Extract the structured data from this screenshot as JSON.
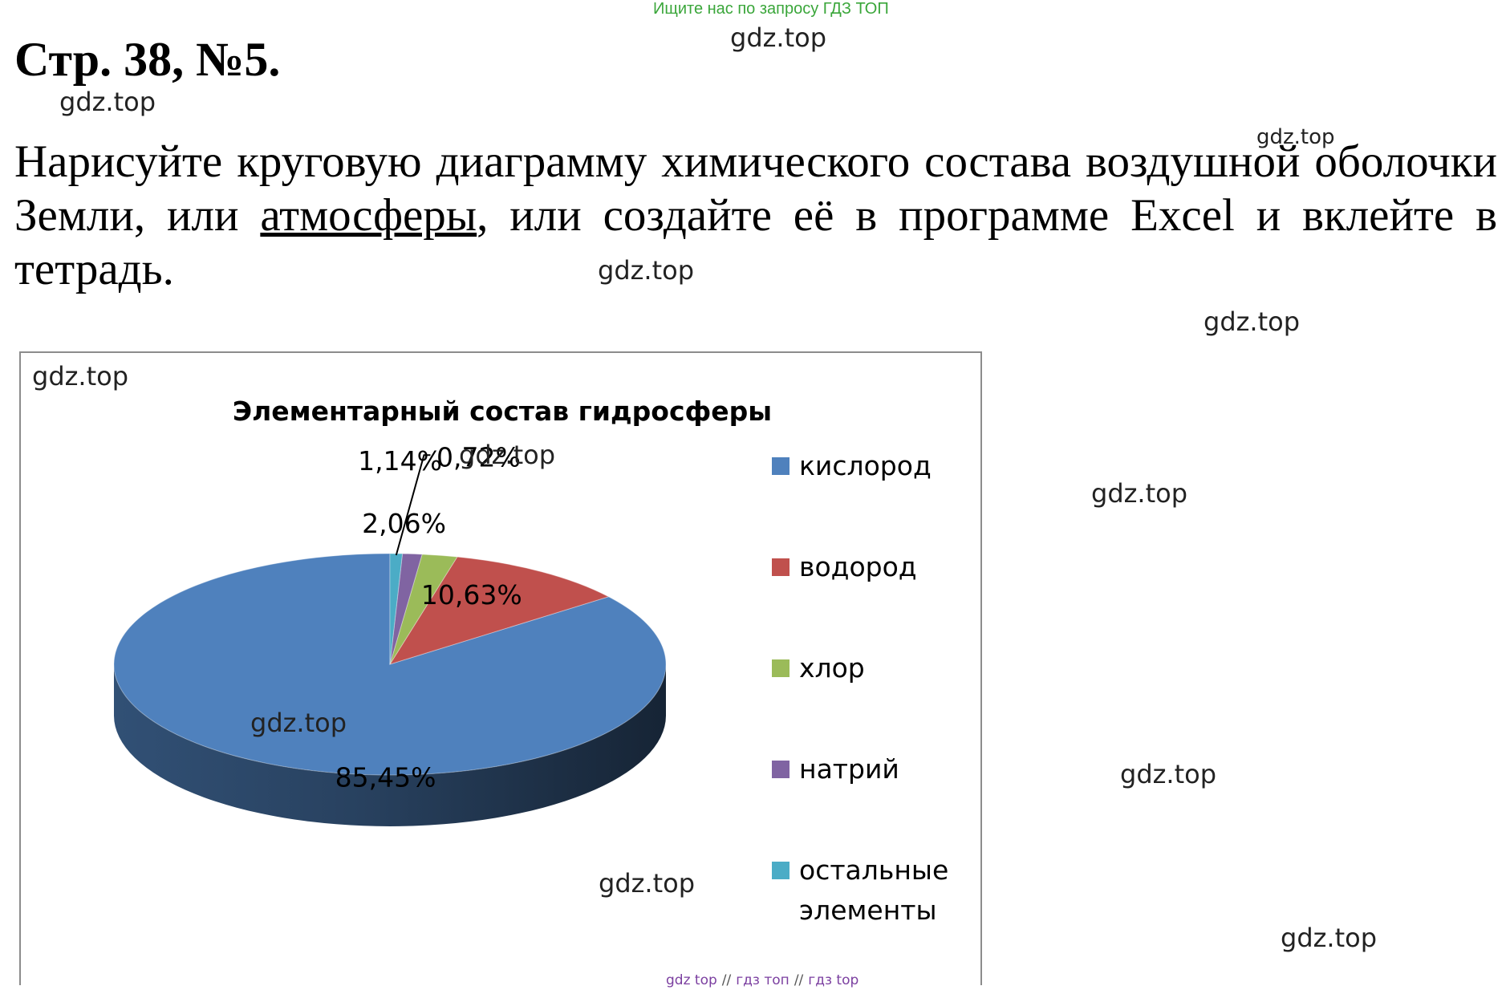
{
  "banner": "Ищите нас по запросу ГДЗ ТОП",
  "heading": "Стр. 38, №5.",
  "task": {
    "before": "Нарисуйте круговую диаграмму химического состава воздушной оболочки Земли, или ",
    "underlined": "атмосферы",
    "after": ", или создайте её в программе Excel и вклейте в тетрадь."
  },
  "watermark": "gdz.top",
  "footer": {
    "link1": "gdz top",
    "sep": "//",
    "link2": "гдз топ",
    "link3": "гдз top"
  },
  "chart_data": {
    "type": "pie",
    "title": "Элементарный состав гидросферы",
    "categories": [
      "кислород",
      "водород",
      "хлор",
      "натрий",
      "остальные элементы"
    ],
    "values": [
      85.45,
      10.63,
      2.06,
      1.14,
      0.72
    ],
    "labels": [
      "85,45%",
      "10,63%",
      "2,06%",
      "1,14%",
      "0,72%"
    ],
    "colors": [
      "#4f81bd",
      "#c0504d",
      "#9bbb59",
      "#8064a2",
      "#4bacc6"
    ],
    "legend_labels": [
      [
        "кислород"
      ],
      [
        "водород"
      ],
      [
        "хлор"
      ],
      [
        "натрий"
      ],
      [
        "остальные",
        "элементы"
      ]
    ],
    "legend": "right",
    "style": "3d"
  }
}
